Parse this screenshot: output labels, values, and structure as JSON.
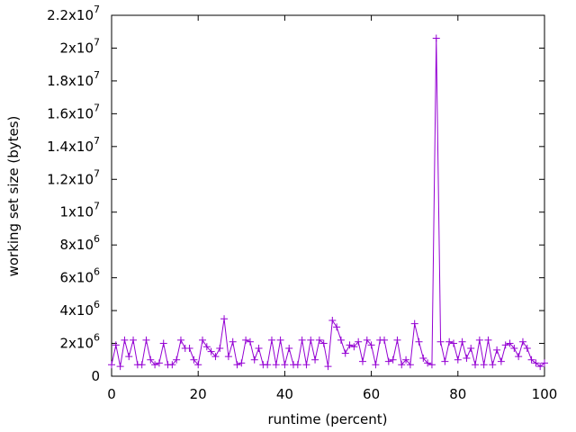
{
  "chart_data": {
    "type": "line",
    "xlabel": "runtime (percent)",
    "ylabel": "working set size (bytes)",
    "x": [
      0,
      1,
      2,
      3,
      4,
      5,
      6,
      7,
      8,
      9,
      10,
      11,
      12,
      13,
      14,
      15,
      16,
      17,
      18,
      19,
      20,
      21,
      22,
      23,
      24,
      25,
      26,
      27,
      28,
      29,
      30,
      31,
      32,
      33,
      34,
      35,
      36,
      37,
      38,
      39,
      40,
      41,
      42,
      43,
      44,
      45,
      46,
      47,
      48,
      49,
      50,
      51,
      52,
      53,
      54,
      55,
      56,
      57,
      58,
      59,
      60,
      61,
      62,
      63,
      64,
      65,
      66,
      67,
      68,
      69,
      70,
      71,
      72,
      73,
      74,
      75,
      76,
      77,
      78,
      79,
      80,
      81,
      82,
      83,
      84,
      85,
      86,
      87,
      88,
      89,
      90,
      91,
      92,
      93,
      94,
      95,
      96,
      97,
      98,
      99,
      100
    ],
    "series": [
      {
        "color": "#9400d3",
        "values": [
          700000,
          1900000,
          600000,
          2200000,
          1200000,
          2200000,
          700000,
          700000,
          2200000,
          1000000,
          700000,
          800000,
          2000000,
          700000,
          700000,
          1000000,
          2200000,
          1700000,
          1700000,
          1000000,
          700000,
          2200000,
          1800000,
          1500000,
          1200000,
          1700000,
          3500000,
          1200000,
          2100000,
          700000,
          800000,
          2200000,
          2100000,
          1000000,
          1700000,
          700000,
          700000,
          2200000,
          700000,
          2200000,
          700000,
          1700000,
          700000,
          700000,
          2200000,
          700000,
          2200000,
          1000000,
          2200000,
          2000000,
          600000,
          3400000,
          3000000,
          2200000,
          1400000,
          1900000,
          1800000,
          2100000,
          900000,
          2200000,
          1900000,
          700000,
          2200000,
          2200000,
          900000,
          1000000,
          2200000,
          700000,
          1000000,
          700000,
          3200000,
          2100000,
          1100000,
          800000,
          700000,
          20600000,
          2100000,
          900000,
          2100000,
          2000000,
          1000000,
          2100000,
          1100000,
          1700000,
          700000,
          2200000,
          700000,
          2200000,
          700000,
          1600000,
          900000,
          1900000,
          2000000,
          1700000,
          1200000,
          2100000,
          1700000,
          1000000,
          800000,
          600000,
          800000
        ]
      }
    ],
    "xlim": [
      0,
      100
    ],
    "xticks": [
      0,
      20,
      40,
      60,
      80,
      100
    ],
    "ylim": [
      0,
      22000000
    ],
    "yticks": [
      0,
      {
        "value": 2000000,
        "label": "2x10",
        "sup": "6"
      },
      {
        "value": 4000000,
        "label": "4x10",
        "sup": "6"
      },
      {
        "value": 6000000,
        "label": "6x10",
        "sup": "6"
      },
      {
        "value": 8000000,
        "label": "8x10",
        "sup": "6"
      },
      {
        "value": 10000000,
        "label": "1x10",
        "sup": "7"
      },
      {
        "value": 12000000,
        "label": "1.2x10",
        "sup": "7"
      },
      {
        "value": 14000000,
        "label": "1.4x10",
        "sup": "7"
      },
      {
        "value": 16000000,
        "label": "1.6x10",
        "sup": "7"
      },
      {
        "value": 18000000,
        "label": "1.8x10",
        "sup": "7"
      },
      {
        "value": 20000000,
        "label": "2x10",
        "sup": "7"
      },
      {
        "value": 22000000,
        "label": "2.2x10",
        "sup": "7"
      }
    ]
  }
}
